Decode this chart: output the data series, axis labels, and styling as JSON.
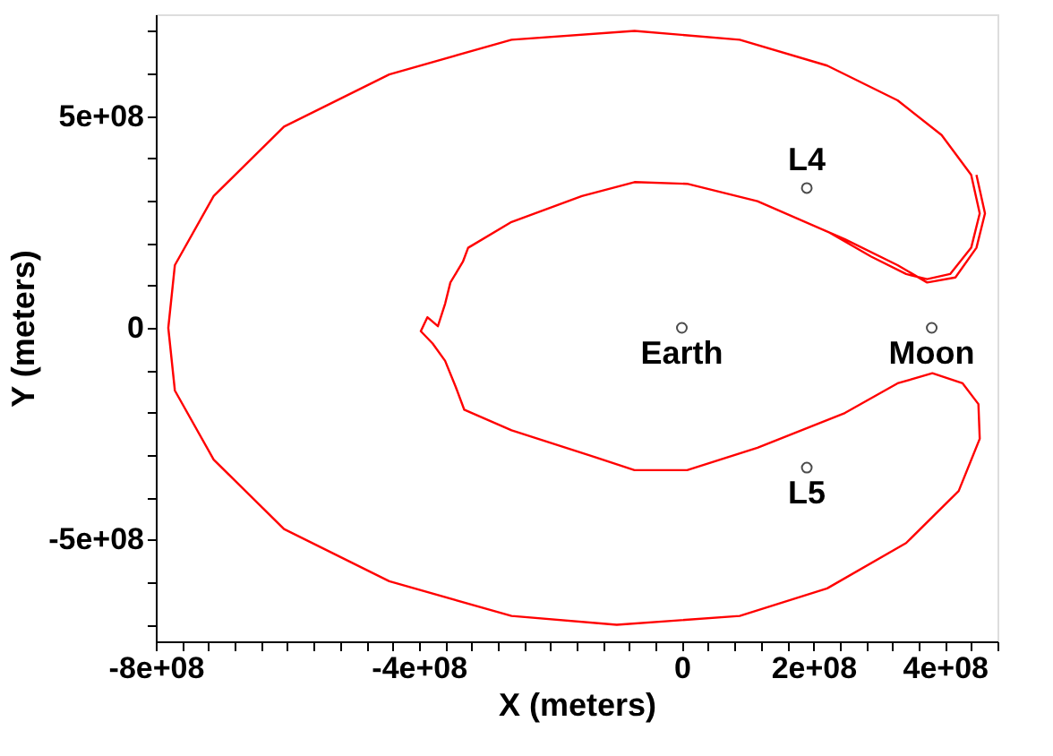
{
  "chart_data": {
    "type": "line",
    "xlabel": "X (meters)",
    "ylabel": "Y (meters)",
    "xlim": [
      -800000000.0,
      480000000.0
    ],
    "ylim": [
      -740000000.0,
      740000000.0
    ],
    "xticks": [
      {
        "value": -800000000.0,
        "label": "-8e+08"
      },
      {
        "value": -760000000.0,
        "label": null
      },
      {
        "value": -720000000.0,
        "label": null
      },
      {
        "value": -680000000.0,
        "label": null
      },
      {
        "value": -640000000.0,
        "label": null
      },
      {
        "value": -600000000.0,
        "label": null
      },
      {
        "value": -560000000.0,
        "label": null
      },
      {
        "value": -520000000.0,
        "label": null
      },
      {
        "value": -480000000.0,
        "label": null
      },
      {
        "value": -440000000.0,
        "label": null
      },
      {
        "value": -400000000.0,
        "label": "-4e+08"
      },
      {
        "value": -360000000.0,
        "label": null
      },
      {
        "value": -320000000.0,
        "label": null
      },
      {
        "value": -280000000.0,
        "label": null
      },
      {
        "value": -240000000.0,
        "label": null
      },
      {
        "value": -200000000.0,
        "label": null
      },
      {
        "value": -160000000.0,
        "label": null
      },
      {
        "value": -120000000.0,
        "label": null
      },
      {
        "value": -80000000.0,
        "label": null
      },
      {
        "value": -40000000.0,
        "label": null
      },
      0,
      {
        "value": 40000000.0,
        "label": null
      },
      {
        "value": 80000000.0,
        "label": null
      },
      {
        "value": 120000000.0,
        "label": null
      },
      {
        "value": 160000000.0,
        "label": null
      },
      {
        "value": 200000000.0,
        "label": "2e+08"
      },
      {
        "value": 240000000.0,
        "label": null
      },
      {
        "value": 280000000.0,
        "label": null
      },
      {
        "value": 320000000.0,
        "label": null
      },
      {
        "value": 360000000.0,
        "label": null
      },
      {
        "value": 400000000.0,
        "label": "4e+08"
      },
      {
        "value": 440000000.0,
        "label": null
      },
      {
        "value": 480000000.0,
        "label": null
      }
    ],
    "yticks": [
      {
        "value": -700000000.0,
        "label": null
      },
      {
        "value": -600000000.0,
        "label": null
      },
      {
        "value": -500000000.0,
        "label": "-5e+08"
      },
      {
        "value": -400000000.0,
        "label": null
      },
      {
        "value": -300000000.0,
        "label": null
      },
      {
        "value": -200000000.0,
        "label": null
      },
      {
        "value": -100000000.0,
        "label": null
      },
      0,
      {
        "value": 100000000.0,
        "label": null
      },
      {
        "value": 200000000.0,
        "label": null
      },
      {
        "value": 300000000.0,
        "label": null
      },
      {
        "value": 400000000.0,
        "label": null
      },
      {
        "value": 500000000.0,
        "label": "5e+08"
      },
      {
        "value": 600000000.0,
        "label": null
      },
      {
        "value": 700000000.0,
        "label": null
      }
    ],
    "grid": false,
    "line_style": "solid",
    "series": [
      {
        "color": "#ff0000",
        "marker": "none",
        "x": [
          224000000.0,
          288000000.0,
          341000000.0,
          373000000.0,
          408000000.0,
          440000000.0,
          453000000.0,
          440000000.0,
          395000000.0,
          328000000.0,
          221000000.0,
          88000000.0,
          -72000000.0,
          -259000000.0,
          -445000000.0,
          -605000000.0,
          -712000000.0,
          -771000000.0,
          -781000000.0,
          -771000000.0,
          -712000000.0,
          -605000000.0,
          -445000000.0,
          -259000000.0,
          -99000000.0,
          88000000.0,
          221000000.0,
          341000000.0,
          421000000.0,
          453000000.0,
          451000000.0,
          427000000.0,
          381000000.0,
          328000000.0,
          248000000.0,
          115000000.0,
          8000000.0,
          -72000000.0,
          -152000000.0,
          -259000000.0,
          -331000000.0,
          -344000000.0,
          -360000000.0,
          -379000000.0,
          -397000000.0,
          -387000000.0,
          -371000000.0,
          -360000000.0,
          -352000000.0,
          -333000000.0,
          -325000000.0,
          -259000000.0,
          -152000000.0,
          -72000000.0,
          8000000.0,
          115000000.0,
          248000000.0,
          328000000.0,
          373000000.0,
          416000000.0,
          448000000.0,
          461000000.0,
          448000000.0
        ],
        "values": [
          225000000.0,
          168000000.0,
          127000000.0,
          115000000.0,
          127000000.0,
          189000000.0,
          270000000.0,
          361000000.0,
          455000000.0,
          537000000.0,
          619000000.0,
          680000000.0,
          701000000.0,
          680000000.0,
          598000000.0,
          475000000.0,
          311000000.0,
          148000000.0,
          0,
          -148000000.0,
          -311000000.0,
          -475000000.0,
          -598000000.0,
          -680000000.0,
          -701000000.0,
          -680000000.0,
          -615000000.0,
          -508000000.0,
          -385000000.0,
          -262000000.0,
          -180000000.0,
          -131000000.0,
          -107000000.0,
          -131000000.0,
          -201000000.0,
          -283000000.0,
          -336000000.0,
          -336000000.0,
          -295000000.0,
          -242000000.0,
          -193000000.0,
          -139000000.0,
          -78000000.0,
          -37000000.0,
          -8000000.0,
          25000000.0,
          4000000.0,
          57000000.0,
          107000000.0,
          156000000.0,
          189000000.0,
          250000000.0,
          311000000.0,
          344000000.0,
          340000000.0,
          299000000.0,
          209000000.0,
          148000000.0,
          107000000.0,
          119000000.0,
          189000000.0,
          270000000.0,
          361000000.0
        ]
      },
      {
        "type": "scatter",
        "name": "Earth",
        "color": "#000000",
        "marker": "circle",
        "x": [
          0
        ],
        "values": [
          0
        ]
      },
      {
        "type": "scatter",
        "name": "Moon",
        "color": "#000000",
        "marker": "circle",
        "x": [
          380000000.0
        ],
        "values": [
          0
        ]
      },
      {
        "type": "scatter",
        "name": "L4",
        "color": "#000000",
        "marker": "circle",
        "x": [
          190000000.0
        ],
        "values": [
          330000000.0
        ]
      },
      {
        "type": "scatter",
        "name": "L5",
        "color": "#000000",
        "marker": "circle",
        "x": [
          190000000.0
        ],
        "values": [
          -330000000.0
        ]
      }
    ]
  }
}
